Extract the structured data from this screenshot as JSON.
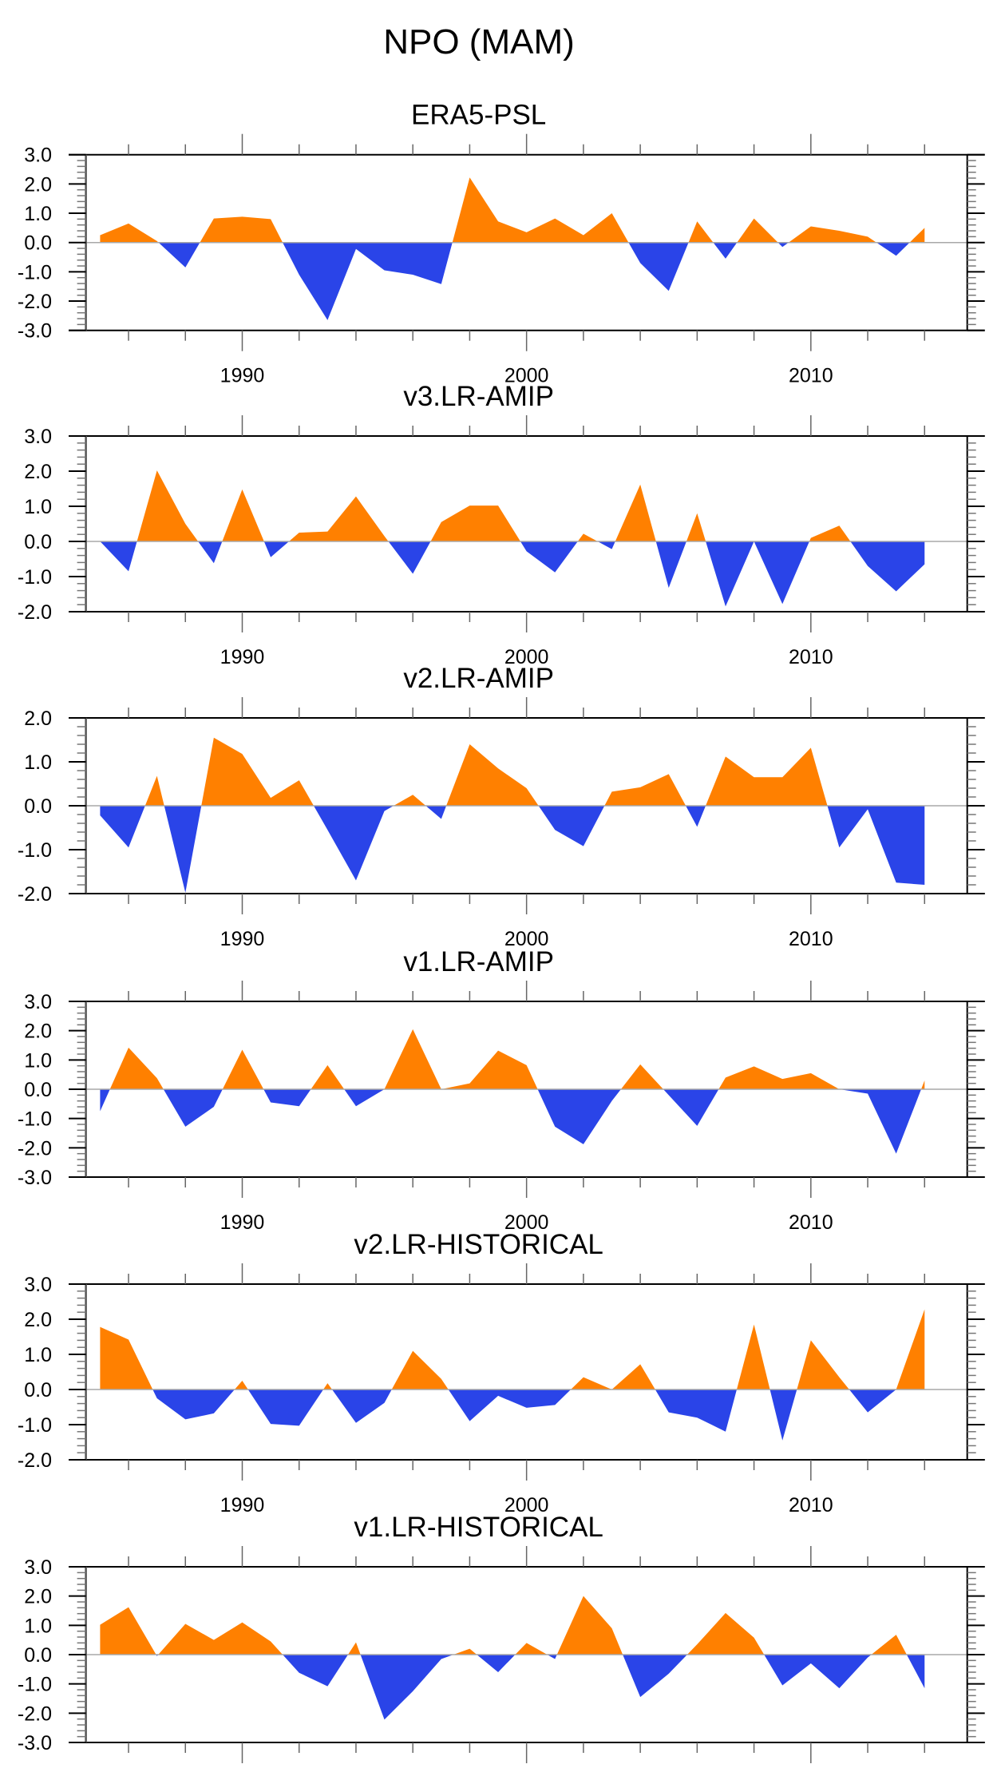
{
  "figure": {
    "title": "NPO (MAM)",
    "colors": {
      "positive": "#ff8000",
      "negative": "#2a44e8",
      "axis": "#000000",
      "zero_line": "#a8a8a8"
    }
  },
  "chart_data": [
    {
      "type": "area",
      "title": "ERA5-PSL",
      "xlabel": "",
      "ylabel": "",
      "xlim": [
        1984.5,
        2015.5
      ],
      "ylim": [
        -3,
        3
      ],
      "yticks": [
        "3.0",
        "2.0",
        "1.0",
        "0.0",
        "-1.0",
        "-2.0",
        "-3.0"
      ],
      "xticks": [
        "1990",
        "2000",
        "2010"
      ],
      "x": [
        1985,
        1986,
        1987,
        1988,
        1989,
        1990,
        1991,
        1992,
        1993,
        1994,
        1995,
        1996,
        1997,
        1998,
        1999,
        2000,
        2001,
        2002,
        2003,
        2004,
        2005,
        2006,
        2007,
        2008,
        2009,
        2010,
        2011,
        2012,
        2013,
        2014
      ],
      "values": [
        0.25,
        0.65,
        0.05,
        -0.85,
        0.82,
        0.88,
        0.8,
        -1.1,
        -2.65,
        -0.22,
        -0.95,
        -1.1,
        -1.42,
        2.22,
        0.72,
        0.35,
        0.82,
        0.25,
        1.0,
        -0.7,
        -1.65,
        0.72,
        -0.55,
        0.82,
        -0.15,
        0.55,
        0.4,
        0.2,
        -0.45,
        0.5
      ]
    },
    {
      "type": "area",
      "title": "v3.LR-AMIP",
      "xlabel": "",
      "ylabel": "",
      "xlim": [
        1984.5,
        2015.5
      ],
      "ylim": [
        -2,
        3
      ],
      "yticks": [
        "3.0",
        "2.0",
        "1.0",
        "0.0",
        "-1.0",
        "-2.0"
      ],
      "xticks": [
        "1990",
        "2000",
        "2010"
      ],
      "x": [
        1985,
        1986,
        1987,
        1988,
        1989,
        1990,
        1991,
        1992,
        1993,
        1994,
        1995,
        1996,
        1997,
        1998,
        1999,
        2000,
        2001,
        2002,
        2003,
        2004,
        2005,
        2006,
        2007,
        2008,
        2009,
        2010,
        2011,
        2012,
        2013,
        2014
      ],
      "values": [
        0.0,
        -0.85,
        2.02,
        0.5,
        -0.62,
        1.48,
        -0.45,
        0.25,
        0.28,
        1.28,
        0.15,
        -0.92,
        0.55,
        1.02,
        1.02,
        -0.28,
        -0.88,
        0.22,
        -0.22,
        1.62,
        -1.32,
        0.8,
        -1.85,
        0.0,
        -1.78,
        0.1,
        0.45,
        -0.7,
        -1.42,
        -0.65
      ]
    },
    {
      "type": "area",
      "title": "v2.LR-AMIP",
      "xlabel": "",
      "ylabel": "",
      "xlim": [
        1984.5,
        2015.5
      ],
      "ylim": [
        -2,
        2
      ],
      "yticks": [
        "2.0",
        "1.0",
        "0.0",
        "-1.0",
        "-2.0"
      ],
      "xticks": [
        "1990",
        "2000",
        "2010"
      ],
      "x": [
        1985,
        1986,
        1987,
        1988,
        1989,
        1990,
        1991,
        1992,
        1993,
        1994,
        1995,
        1996,
        1997,
        1998,
        1999,
        2000,
        2001,
        2002,
        2003,
        2004,
        2005,
        2006,
        2007,
        2008,
        2009,
        2010,
        2011,
        2012,
        2013,
        2014
      ],
      "values": [
        -0.22,
        -0.95,
        0.68,
        -1.98,
        1.55,
        1.18,
        0.18,
        0.58,
        -0.55,
        -1.7,
        -0.12,
        0.25,
        -0.3,
        1.4,
        0.85,
        0.4,
        -0.55,
        -0.92,
        0.32,
        0.42,
        0.72,
        -0.48,
        1.12,
        0.65,
        0.65,
        1.32,
        -0.95,
        -0.08,
        -1.75,
        -1.8
      ]
    },
    {
      "type": "area",
      "title": "v1.LR-AMIP",
      "xlabel": "",
      "ylabel": "",
      "xlim": [
        1984.5,
        2015.5
      ],
      "ylim": [
        -3,
        3
      ],
      "yticks": [
        "3.0",
        "2.0",
        "1.0",
        "0.0",
        "-1.0",
        "-2.0",
        "-3.0"
      ],
      "xticks": [
        "1990",
        "2000",
        "2010"
      ],
      "x": [
        1985,
        1986,
        1987,
        1988,
        1989,
        1990,
        1991,
        1992,
        1993,
        1994,
        1995,
        1996,
        1997,
        1998,
        1999,
        2000,
        2001,
        2002,
        2003,
        2004,
        2005,
        2006,
        2007,
        2008,
        2009,
        2010,
        2011,
        2012,
        2013,
        2014
      ],
      "values": [
        -0.75,
        1.42,
        0.38,
        -1.28,
        -0.6,
        1.35,
        -0.45,
        -0.58,
        0.82,
        -0.58,
        0.0,
        2.05,
        0.0,
        0.2,
        1.32,
        0.82,
        -1.28,
        -1.88,
        -0.4,
        0.85,
        -0.2,
        -1.25,
        0.4,
        0.78,
        0.35,
        0.55,
        0.0,
        -0.15,
        -2.2,
        0.3
      ]
    },
    {
      "type": "area",
      "title": "v2.LR-HISTORICAL",
      "xlabel": "",
      "ylabel": "",
      "xlim": [
        1984.5,
        2015.5
      ],
      "ylim": [
        -2,
        3
      ],
      "yticks": [
        "3.0",
        "2.0",
        "1.0",
        "0.0",
        "-1.0",
        "-2.0"
      ],
      "xticks": [
        "1990",
        "2000",
        "2010"
      ],
      "x": [
        1985,
        1986,
        1987,
        1988,
        1989,
        1990,
        1991,
        1992,
        1993,
        1994,
        1995,
        1996,
        1997,
        1998,
        1999,
        2000,
        2001,
        2002,
        2003,
        2004,
        2005,
        2006,
        2007,
        2008,
        2009,
        2010,
        2011,
        2012,
        2013,
        2014
      ],
      "values": [
        1.78,
        1.42,
        -0.25,
        -0.85,
        -0.68,
        0.25,
        -0.98,
        -1.03,
        0.18,
        -0.95,
        -0.38,
        1.1,
        0.3,
        -0.9,
        -0.18,
        -0.52,
        -0.44,
        0.35,
        0.0,
        0.72,
        -0.65,
        -0.8,
        -1.2,
        1.85,
        -1.45,
        1.4,
        0.35,
        -0.65,
        0.0,
        2.28
      ]
    },
    {
      "type": "area",
      "title": "v1.LR-HISTORICAL",
      "xlabel": "",
      "ylabel": "",
      "xlim": [
        1984.5,
        2015.5
      ],
      "ylim": [
        -3,
        3
      ],
      "yticks": [
        "3.0",
        "2.0",
        "1.0",
        "0.0",
        "-1.0",
        "-2.0",
        "-3.0"
      ],
      "xticks": [
        "1990",
        "2000",
        "2010"
      ],
      "x": [
        1985,
        1986,
        1987,
        1988,
        1989,
        1990,
        1991,
        1992,
        1993,
        1994,
        1995,
        1996,
        1997,
        1998,
        1999,
        2000,
        2001,
        2002,
        2003,
        2004,
        2005,
        2006,
        2007,
        2008,
        2009,
        2010,
        2011,
        2012,
        2013,
        2014
      ],
      "values": [
        1.02,
        1.62,
        -0.05,
        1.05,
        0.5,
        1.1,
        0.45,
        -0.62,
        -1.08,
        0.42,
        -2.22,
        -1.25,
        -0.15,
        0.2,
        -0.6,
        0.4,
        -0.15,
        2.0,
        0.9,
        -1.45,
        -0.65,
        0.35,
        1.42,
        0.58,
        -1.05,
        -0.3,
        -1.15,
        -0.1,
        0.68,
        -1.15
      ]
    }
  ]
}
